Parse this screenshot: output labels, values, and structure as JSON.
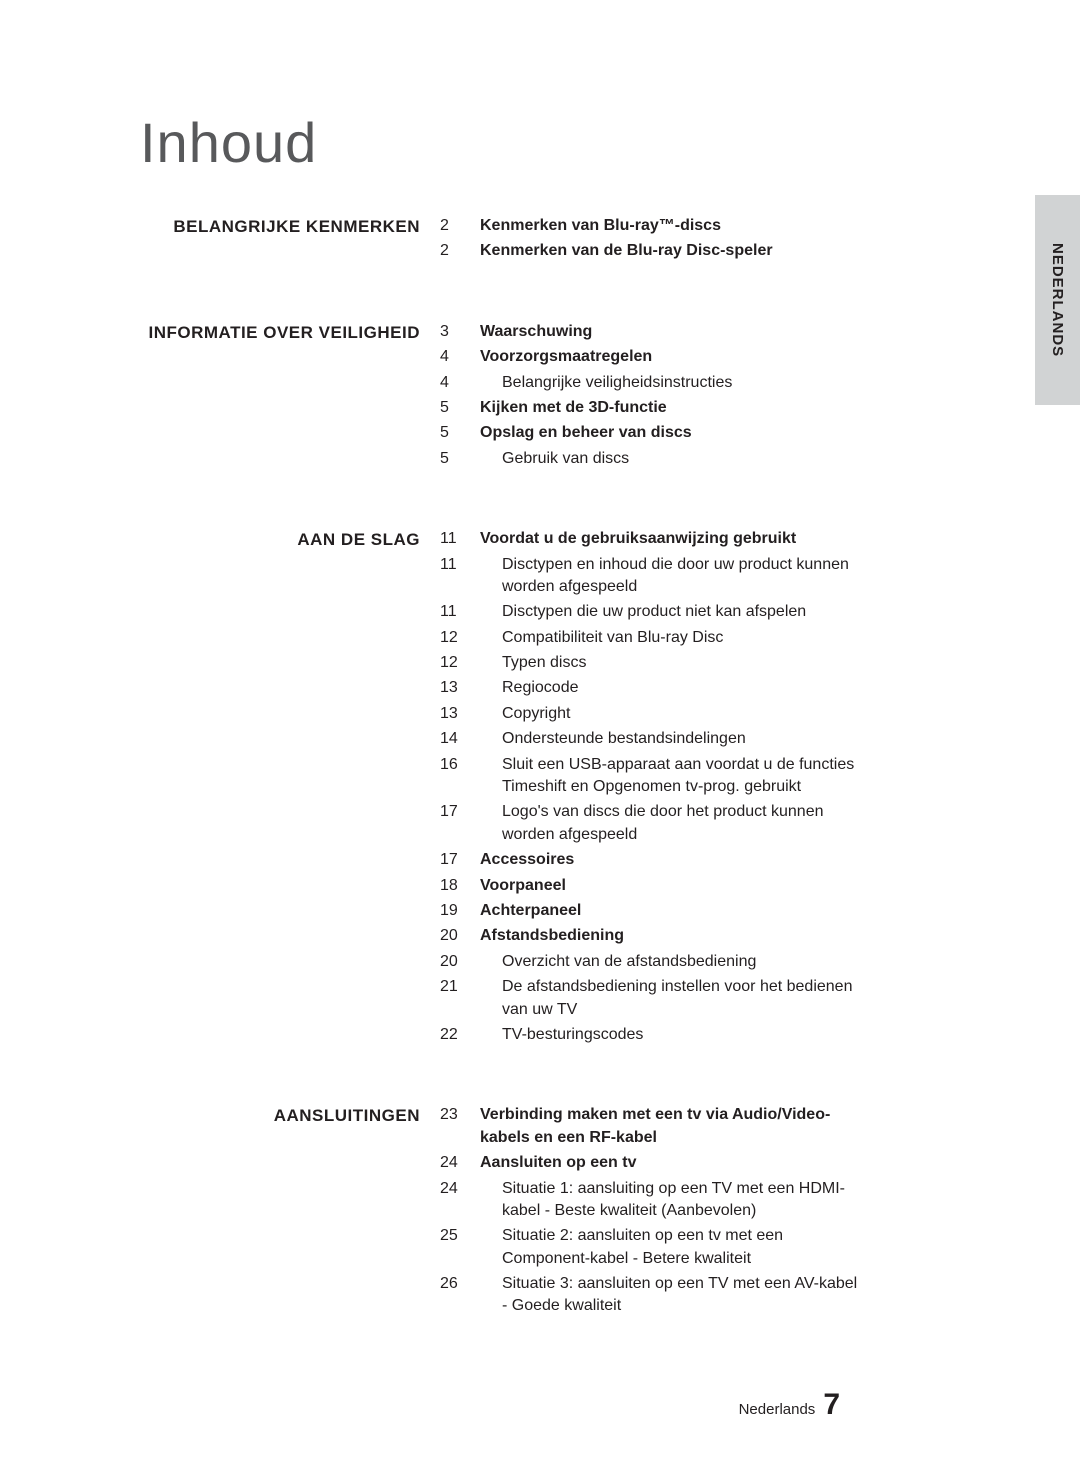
{
  "title": "Inhoud",
  "side_tab": "NEDERLANDS",
  "footer_label": "Nederlands",
  "footer_page": "7",
  "colors": {
    "page_bg": "#ffffff",
    "text": "#231f20",
    "title": "#58595b",
    "tab_bg": "#d1d3d4"
  },
  "sections": [
    {
      "title": "BELANGRIJKE KENMERKEN",
      "entries": [
        {
          "page": "2",
          "text": "Kenmerken van Blu-ray™-discs",
          "bold": true
        },
        {
          "page": "2",
          "text": "Kenmerken van de Blu-ray Disc-speler",
          "bold": true
        }
      ]
    },
    {
      "title": "INFORMATIE OVER VEILIGHEID",
      "entries": [
        {
          "page": "3",
          "text": "Waarschuwing",
          "bold": true
        },
        {
          "page": "4",
          "text": "Voorzorgsmaatregelen",
          "bold": true
        },
        {
          "page": "4",
          "text": "Belangrijke veiligheidsinstructies",
          "sub": true
        },
        {
          "page": "5",
          "text": "Kijken met de 3D-functie",
          "bold": true
        },
        {
          "page": "5",
          "text": "Opslag en beheer van discs",
          "bold": true
        },
        {
          "page": "5",
          "text": "Gebruik van discs",
          "sub": true
        }
      ]
    },
    {
      "title": "AAN DE SLAG",
      "entries": [
        {
          "page": "11",
          "text": "Voordat u de gebruiksaanwijzing gebruikt",
          "bold": true
        },
        {
          "page": "11",
          "text": "Disctypen en inhoud die door uw product kunnen worden afgespeeld",
          "sub": true
        },
        {
          "page": "11",
          "text": "Disctypen die uw product niet kan afspelen",
          "sub": true
        },
        {
          "page": "12",
          "text": "Compatibiliteit van Blu-ray Disc",
          "sub": true
        },
        {
          "page": "12",
          "text": "Typen discs",
          "sub": true
        },
        {
          "page": "13",
          "text": "Regiocode",
          "sub": true
        },
        {
          "page": "13",
          "text": "Copyright",
          "sub": true
        },
        {
          "page": "14",
          "text": "Ondersteunde bestandsindelingen",
          "sub": true
        },
        {
          "page": "16",
          "text": "Sluit een USB-apparaat aan voordat u de functies Timeshift en Opgenomen tv-prog. gebruikt",
          "sub": true
        },
        {
          "page": "17",
          "text": "Logo's van discs die door het product kunnen worden afgespeeld",
          "sub": true
        },
        {
          "page": "17",
          "text": "Accessoires",
          "bold": true
        },
        {
          "page": "18",
          "text": "Voorpaneel",
          "bold": true
        },
        {
          "page": "19",
          "text": "Achterpaneel",
          "bold": true
        },
        {
          "page": "20",
          "text": "Afstandsbediening",
          "bold": true
        },
        {
          "page": "20",
          "text": "Overzicht van de afstandsbediening",
          "sub": true
        },
        {
          "page": "21",
          "text": "De afstandsbediening instellen voor het bedienen van uw TV",
          "sub": true
        },
        {
          "page": "22",
          "text": "TV-besturingscodes",
          "sub": true
        }
      ]
    },
    {
      "title": "AANSLUITINGEN",
      "entries": [
        {
          "page": "23",
          "text": "Verbinding maken met een tv via Audio/Video-kabels en een RF-kabel",
          "bold": true
        },
        {
          "page": "24",
          "text": "Aansluiten op een tv",
          "bold": true
        },
        {
          "page": "24",
          "text": "Situatie 1: aansluiting op een TV met een HDMI-kabel - Beste kwaliteit (Aanbevolen)",
          "sub": true
        },
        {
          "page": "25",
          "text": "Situatie 2: aansluiten op een tv met een Component-kabel - Betere kwaliteit",
          "sub": true
        },
        {
          "page": "26",
          "text": "Situatie 3: aansluiten op een TV met een AV-kabel - Goede kwaliteit",
          "sub": true
        }
      ]
    }
  ]
}
